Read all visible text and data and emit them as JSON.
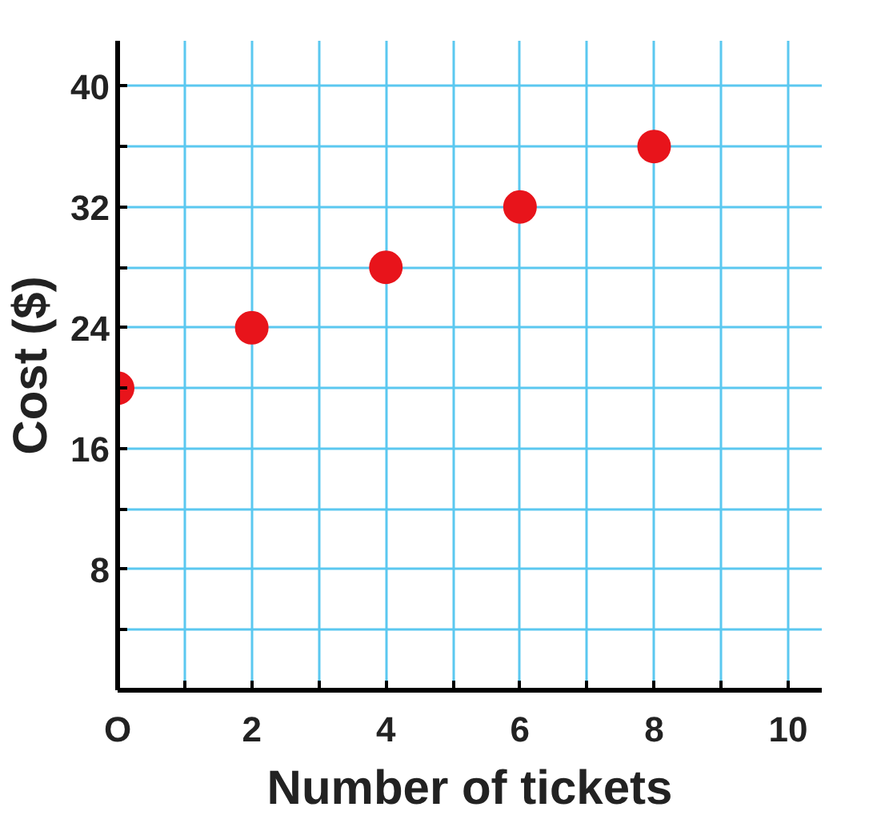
{
  "chart_data": {
    "type": "scatter",
    "xlabel": "Number of tickets",
    "ylabel": "Cost ($)",
    "x": [
      0,
      2,
      4,
      6,
      8
    ],
    "series": [
      {
        "color": "#e8141b",
        "values": [
          20,
          24,
          28,
          32,
          36
        ]
      }
    ],
    "xlim": [
      0,
      10.5
    ],
    "ylim": [
      0,
      43
    ],
    "xticks": [
      {
        "value": 0,
        "label": "O"
      },
      {
        "value": 1,
        "label": null
      },
      2,
      {
        "value": 3,
        "label": null
      },
      4,
      {
        "value": 5,
        "label": null
      },
      6,
      {
        "value": 7,
        "label": null
      },
      8,
      {
        "value": 9,
        "label": null
      },
      10
    ],
    "yticks": [
      {
        "value": 4,
        "label": null
      },
      8,
      {
        "value": 12,
        "label": null
      },
      16,
      {
        "value": 20,
        "label": null
      },
      24,
      {
        "value": 28,
        "label": null
      },
      32,
      {
        "value": 36,
        "label": null
      },
      40
    ],
    "grid": true,
    "marker": "circle"
  }
}
